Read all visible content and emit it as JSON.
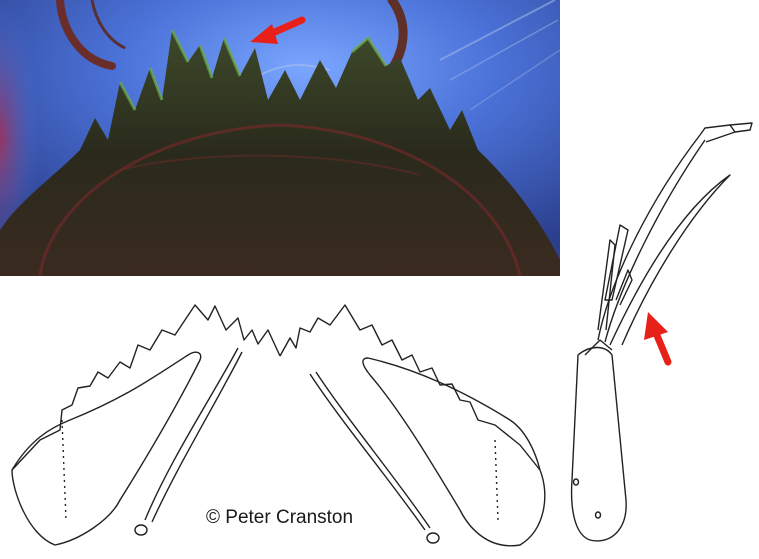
{
  "photo": {
    "subject": "micrograph of toothed mentum",
    "background_color": "#4a6fd6",
    "tooth_color": "#2c3a22"
  },
  "drawings": {
    "left": "mentum and ventromental plates",
    "right": "antenna"
  },
  "arrows": {
    "color": "#e8201a",
    "count": 2
  },
  "copyright": "© Peter Cranston"
}
